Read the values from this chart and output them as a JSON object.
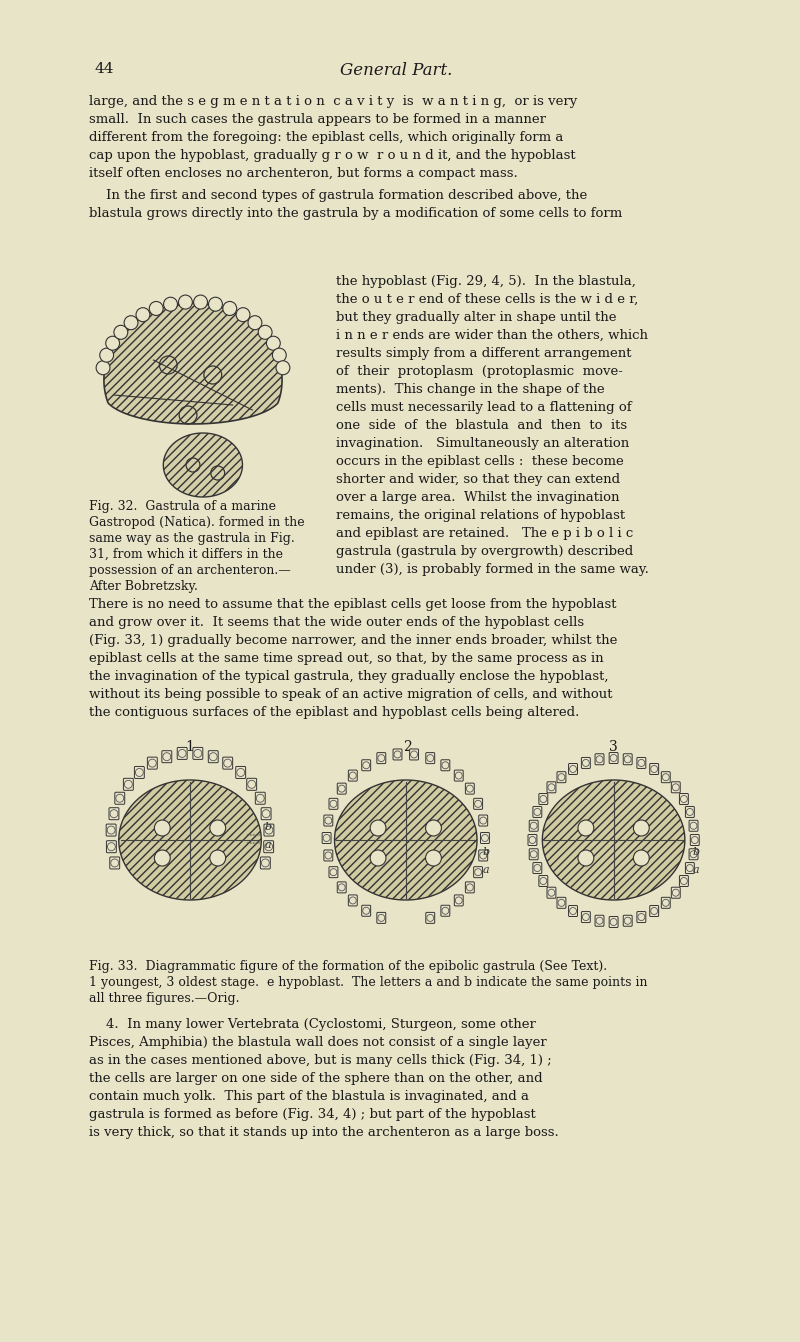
{
  "bg_color": "#e8e4c8",
  "page_color": "#e8e4c8",
  "text_color": "#1a1a1a",
  "page_number": "44",
  "page_title": "General Part.",
  "paragraph1": "large, and the segmentation cavity is wanting, or is very\nsmall.  In such cases the gastrula appears to be formed in a manner\ndifferent from the foregoing: the epiblast cells, which originally form a\ncap upon the hypoblast, gradually g r o w  r o u n d it, and the hypoblast\nitself often encloses no archenteron, but forms a compact mass.",
  "paragraph2": "In the first and second types of gastrula formation described above, the\nblastula grows directly into the gastrula by a modification of some cells to form\nthe hypoblast (Fig. 29, 4, 5).  In the blastula,\nthe o u t e r end of these cells is the w i d e r,\nbut they gradually alter in shape until the\ni n n e r ends are wider than the others, which\nresults simply from a different arrangement\nof  their  protoplasm  (protoplasmic  move-\nments).  This change in the shape of the\ncells must necessarily lead to a flattening of\none  side  of  the  blastula  and  then  to  its\ninvagination.   Simultaneously an alteration\noccurs in the epiblast cells:  these become\nshorter and wider, so that they can extend\nover a large area.  Whilst the invagination\nremains, the original relations of hypoblast\nand epiblast are retained.   The e p i b o l i c\ngastrula (gastrula by overgrowth) described\nunder (3), is probably formed in the same way.",
  "fig32_caption": "Fig. 32.  Gastrula of a marine\nGastropod (Natica). formed in the\nsame way as the gastrula in Fig.\n31, from which it differs in the\npossession of an archenteron.—\nAfter Bobretzsky.",
  "paragraph3": "There is no need to assume that the epiblast cells get loose from the hypoblast\nand grow over it.  It seems that the wide outer ends of the hypoblast cells\n(Fig. 33, 1) gradually become narrower, and the inner ends broader, whilst the\nepiblast cells at the same time spread out, so that, by the same process as in\nthe invagination of the typical gastrula, they gradually enclose the hypoblast,\nwithout its being possible to speak of an active migration of cells, and without\nthe contiguous surfaces of the epiblast and hypoblast cells being altered.",
  "fig33_caption": "Fig. 33.  Diagrammatic figure of the formation of the epibolic gastrula (See Text).\n1 youngest, 3 oldest stage.  e hypoblast.  The letters a and b indicate the same points in\nall three figures.—Orig.",
  "paragraph4": "4.  In many lower Vertebrata (Cyclostomi, Sturgeon, some other\nPisces, Amphibia) the blastula wall does not consist of a single layer\nas in the cases mentioned above, but is many cells thick (Fig. 34, 1) ;\nthe cells are larger on one side of the sphere than on the other, and\ncontain much yolk.  This part of the blastula is invaginated, and a\ngastrula is formed as before (Fig. 34, 4) ; but part of the hypoblast\nis very thick, so that it stands up into the archenteron as a large boss."
}
